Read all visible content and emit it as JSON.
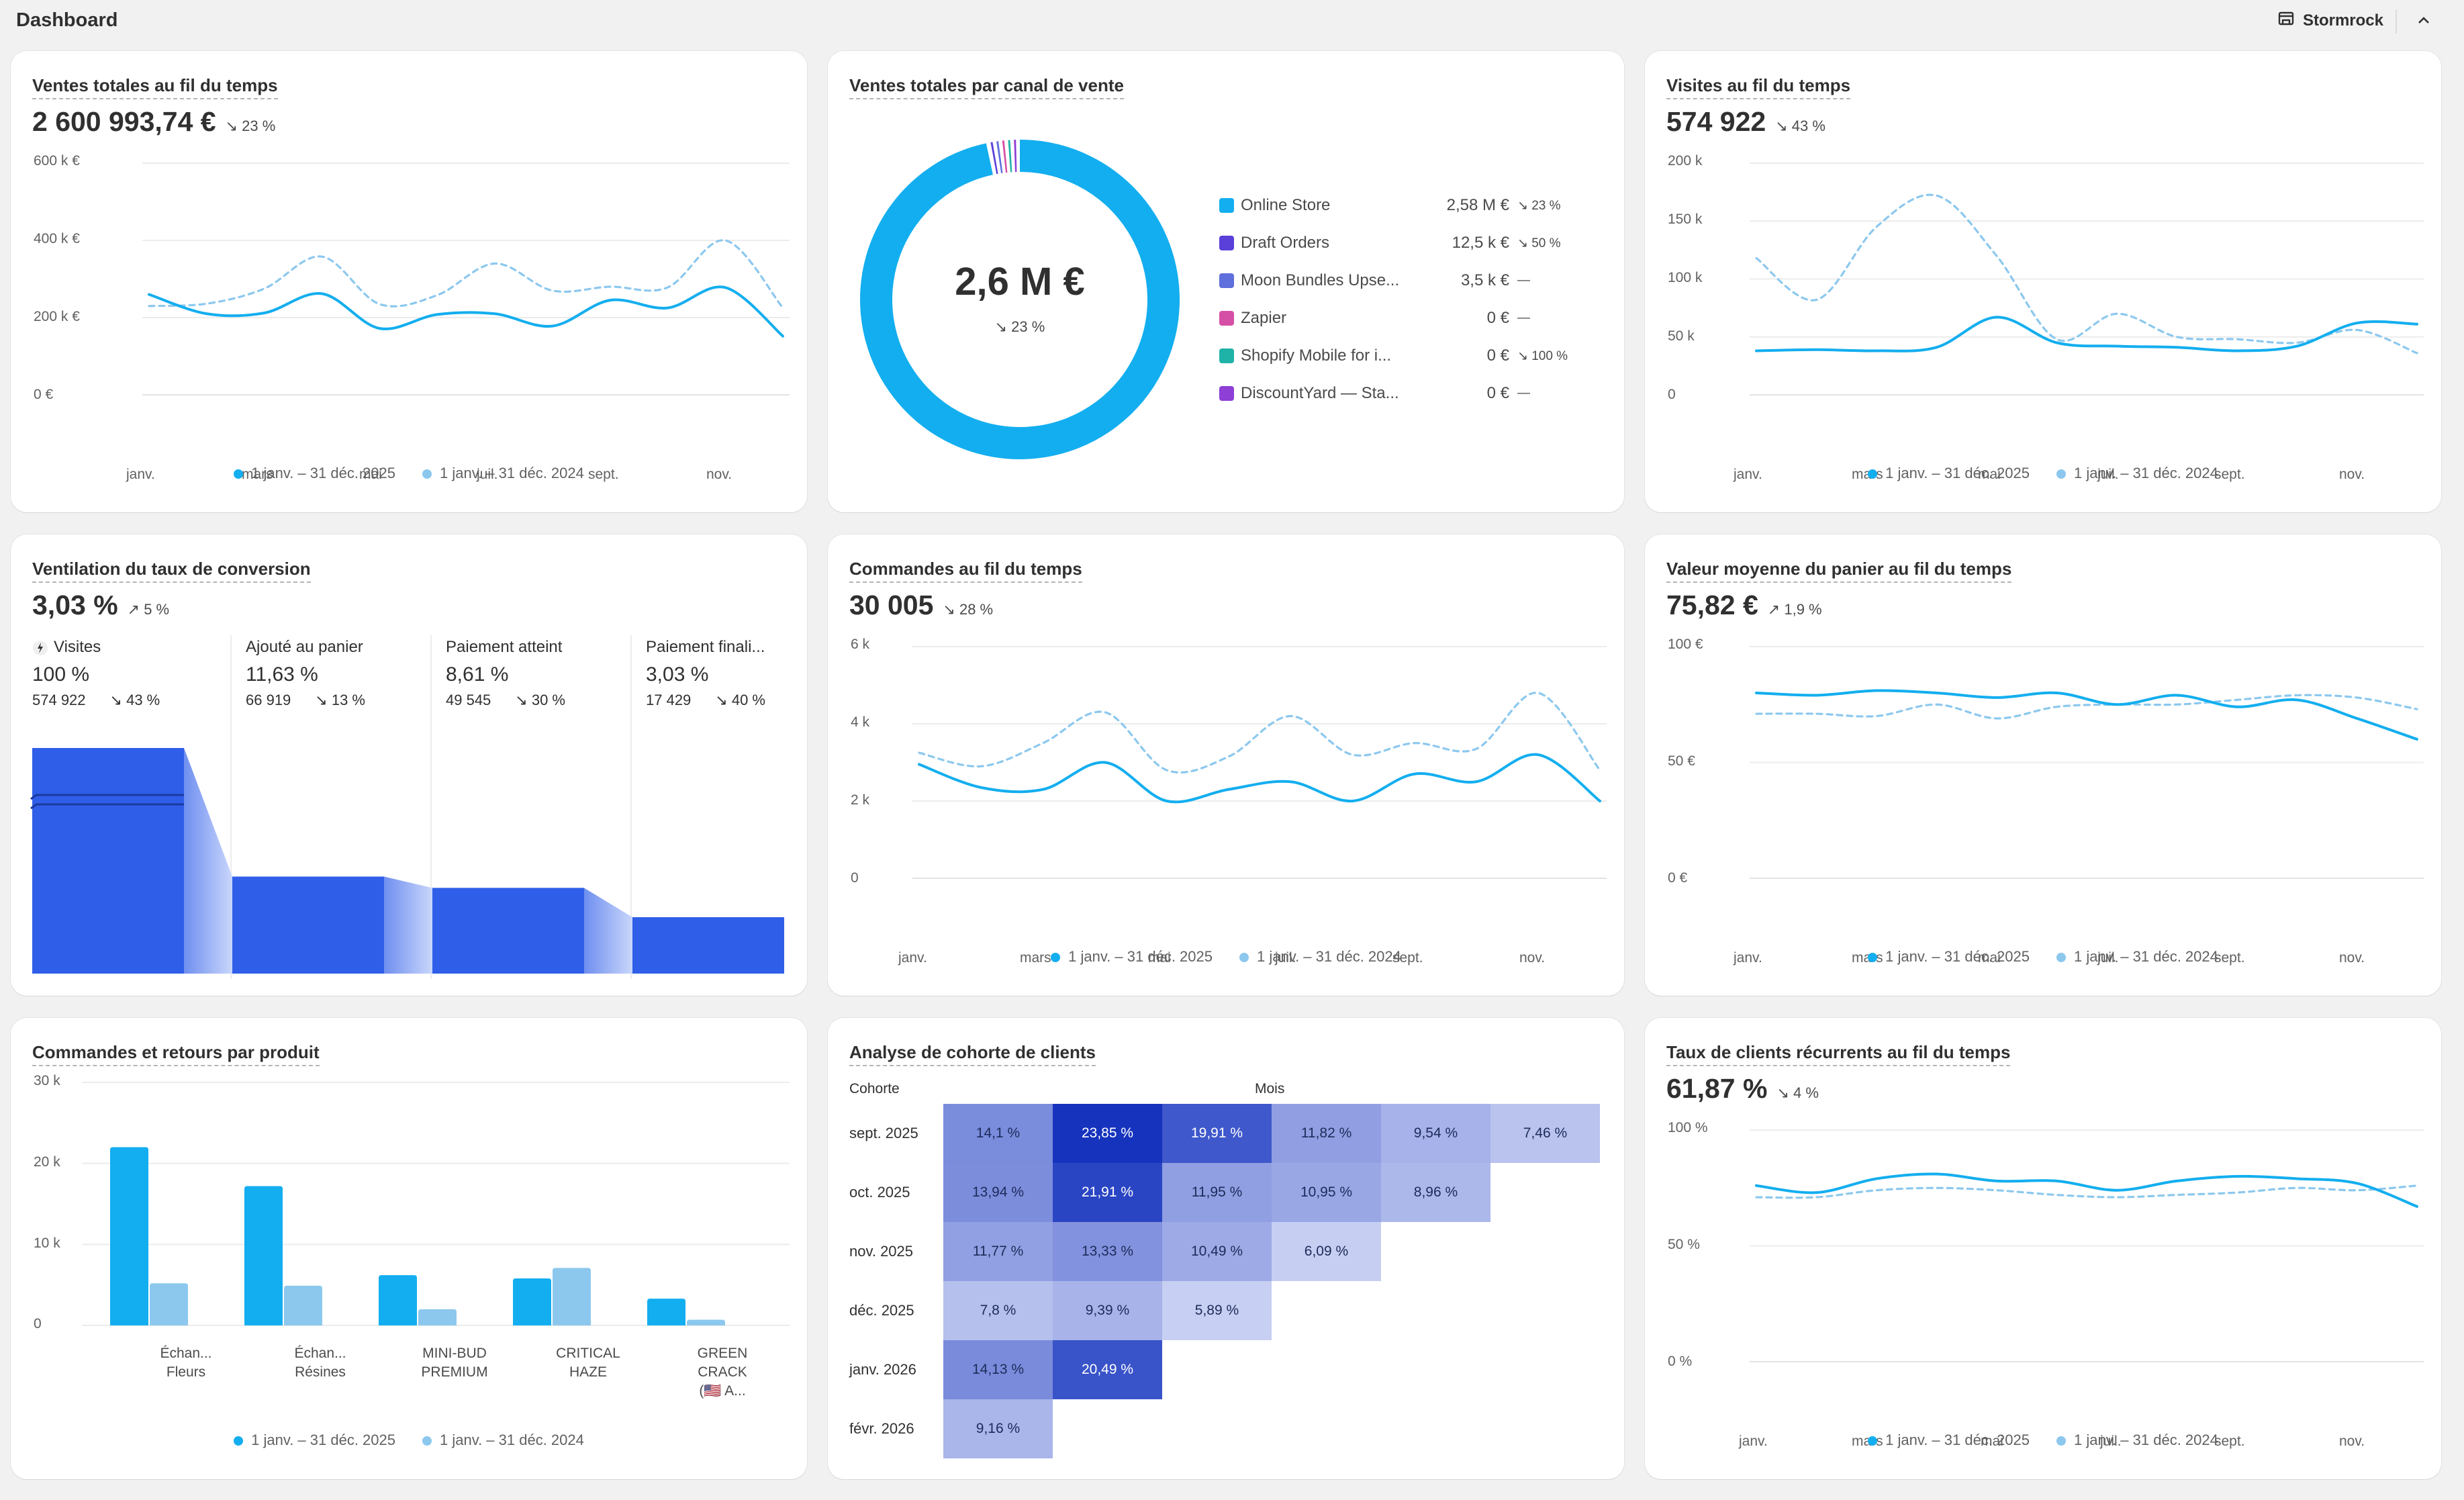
{
  "app": {
    "title": "Dashboard",
    "store": "Stormrock"
  },
  "legend": {
    "current": "1 janv. – 31 déc. 2025",
    "previous": "1 janv. – 31 déc. 2024"
  },
  "colors": {
    "current": "#13aeef",
    "previous": "#8cc8ee",
    "funnel_bar": "#2f5ee8"
  },
  "sales": {
    "title": "Ventes totales au fil du temps",
    "value": "2 600 993,74 €",
    "change": "↘ 23 %",
    "yticks": [
      "600 k €",
      "400 k €",
      "200 k €",
      "0 €"
    ],
    "xticks": [
      "janv.",
      "mars",
      "mai",
      "juil.",
      "sept.",
      "nov."
    ]
  },
  "channels": {
    "title": "Ventes totales par canal de vente",
    "center_value": "2,6 M €",
    "center_change": "↘ 23 %",
    "items": [
      {
        "name": "Online Store",
        "value": "2,58 M €",
        "change": "↘ 23 %",
        "color": "#13aeef"
      },
      {
        "name": "Draft Orders",
        "value": "12,5 k €",
        "change": "↘ 50 %",
        "color": "#5b3fd9"
      },
      {
        "name": "Moon Bundles Upse...",
        "value": "3,5 k €",
        "change": "—",
        "color": "#5f6fdc"
      },
      {
        "name": "Zapier",
        "value": "0 €",
        "change": "—",
        "color": "#d64fa6"
      },
      {
        "name": "Shopify Mobile for i...",
        "value": "0 €",
        "change": "↘ 100 %",
        "color": "#1fb3a8"
      },
      {
        "name": "DiscountYard — Sta...",
        "value": "0 €",
        "change": "—",
        "color": "#8e3fd6"
      }
    ]
  },
  "visits": {
    "title": "Visites au fil du temps",
    "value": "574 922",
    "change": "↘ 43 %",
    "yticks": [
      "200 k",
      "150 k",
      "100 k",
      "50 k",
      "0"
    ],
    "xticks": [
      "janv.",
      "mars",
      "mai",
      "juil.",
      "sept.",
      "nov."
    ]
  },
  "conversion": {
    "title": "Ventilation du taux de conversion",
    "value": "3,03 %",
    "change": "↗ 5 %",
    "steps": [
      {
        "label": "Visites",
        "pct": "100 %",
        "count": "574 922",
        "change": "↘ 43 %",
        "height": 1.0
      },
      {
        "label": "Ajouté au panier",
        "pct": "11,63 %",
        "count": "66 919",
        "change": "↘ 13 %",
        "height": 0.43
      },
      {
        "label": "Paiement atteint",
        "pct": "8,61 %",
        "count": "49 545",
        "change": "↘ 30 %",
        "height": 0.38
      },
      {
        "label": "Paiement finali...",
        "pct": "3,03 %",
        "count": "17 429",
        "change": "↘ 40 %",
        "height": 0.25
      }
    ]
  },
  "orders": {
    "title": "Commandes au fil du temps",
    "value": "30 005",
    "change": "↘ 28 %",
    "yticks": [
      "6 k",
      "4 k",
      "2 k",
      "0"
    ],
    "xticks": [
      "janv.",
      "mars",
      "mai",
      "juil.",
      "sept.",
      "nov."
    ]
  },
  "aov": {
    "title": "Valeur moyenne du panier au fil du temps",
    "value": "75,82 €",
    "change": "↗ 1,9 %",
    "yticks": [
      "100 €",
      "50 €",
      "0 €"
    ],
    "xticks": [
      "janv.",
      "mars",
      "mai",
      "juil.",
      "sept.",
      "nov."
    ]
  },
  "products": {
    "title": "Commandes et retours par produit",
    "yticks": [
      "30 k",
      "20 k",
      "10 k",
      "0"
    ],
    "labels": [
      [
        "Échan...",
        "Fleurs"
      ],
      [
        "Échan...",
        "Résines"
      ],
      [
        "MINI-BUD",
        "PREMIUM"
      ],
      [
        "CRITICAL",
        "HAZE"
      ],
      [
        "GREEN",
        "CRACK",
        "(🇺🇸 A..."
      ]
    ]
  },
  "chart_data": [
    {
      "type": "line",
      "title": "Ventes totales au fil du temps",
      "ylim": [
        0,
        600000
      ],
      "series": [
        {
          "name": "1 janv. – 31 déc. 2025",
          "values": [
            260000,
            210000,
            212000,
            262000,
            172000,
            208000,
            210000,
            178000,
            245000,
            225000,
            278000,
            152000
          ]
        },
        {
          "name": "1 janv. – 31 déc. 2024",
          "values": [
            230000,
            236000,
            275000,
            358000,
            235000,
            258000,
            340000,
            270000,
            280000,
            278000,
            400000,
            225000
          ]
        }
      ]
    },
    {
      "type": "line",
      "title": "Visites au fil du temps",
      "ylim": [
        0,
        200000
      ],
      "series": [
        {
          "name": "1 janv. – 31 déc. 2025",
          "values": [
            38000,
            39000,
            38000,
            41000,
            67000,
            45000,
            42000,
            41000,
            38000,
            42000,
            62000,
            61000
          ]
        },
        {
          "name": "1 janv. – 31 déc. 2024",
          "values": [
            118000,
            82000,
            145000,
            172000,
            120000,
            48000,
            70000,
            50000,
            48000,
            45000,
            56000,
            36000
          ]
        }
      ]
    },
    {
      "type": "line",
      "title": "Commandes au fil du temps",
      "ylim": [
        0,
        6000
      ],
      "series": [
        {
          "name": "1 janv. – 31 déc. 2025",
          "values": [
            2950,
            2350,
            2300,
            3000,
            2000,
            2300,
            2500,
            2000,
            2700,
            2500,
            3200,
            2000
          ]
        },
        {
          "name": "1 janv. – 31 déc. 2024",
          "values": [
            3250,
            2900,
            3500,
            4300,
            2800,
            3150,
            4200,
            3200,
            3500,
            3350,
            4800,
            2800
          ]
        }
      ]
    },
    {
      "type": "line",
      "title": "Valeur moyenne du panier au fil du temps",
      "ylim": [
        0,
        100
      ],
      "series": [
        {
          "name": "1 janv. – 31 déc. 2025",
          "values": [
            80,
            79,
            81,
            80,
            78,
            80,
            75,
            79,
            74,
            77,
            69,
            60
          ]
        },
        {
          "name": "1 janv. – 31 déc. 2024",
          "values": [
            71,
            71,
            70,
            75,
            69,
            74,
            75,
            75,
            77,
            79,
            78,
            73
          ]
        }
      ]
    },
    {
      "type": "bar",
      "title": "Commandes et retours par produit",
      "ylim": [
        0,
        30000
      ],
      "categories": [
        "Échan... Fleurs",
        "Échan... Résines",
        "MINI-BUD PREMIUM",
        "CRITICAL HAZE",
        "GREEN CRACK (🇺🇸 A..."
      ],
      "series": [
        {
          "name": "1 janv. – 31 déc. 2025",
          "values": [
            22000,
            17200,
            6200,
            5800,
            3300
          ]
        },
        {
          "name": "1 janv. – 31 déc. 2024",
          "values": [
            5200,
            4900,
            2000,
            7100,
            700
          ]
        }
      ]
    },
    {
      "type": "line",
      "title": "Taux de clients récurrents au fil du temps",
      "ylim": [
        0,
        100
      ],
      "series": [
        {
          "name": "1 janv. – 31 déc. 2025",
          "values": [
            76,
            73,
            79,
            81,
            78,
            78,
            74,
            78,
            80,
            79,
            77,
            67
          ]
        },
        {
          "name": "1 janv. – 31 déc. 2024",
          "values": [
            71,
            71,
            74,
            75,
            74,
            72,
            71,
            72,
            73,
            75,
            74,
            76
          ]
        }
      ]
    },
    {
      "type": "pie",
      "title": "Ventes totales par canal de vente",
      "categories": [
        "Online Store",
        "Draft Orders",
        "Moon Bundles Upse...",
        "Zapier",
        "Shopify Mobile for i...",
        "DiscountYard — Sta..."
      ],
      "values": [
        2580000,
        12500,
        3500,
        0,
        0,
        0
      ]
    }
  ],
  "cohort": {
    "title": "Analyse de cohorte de clients",
    "cohort_header": "Cohorte",
    "months_header": "Mois",
    "rows": [
      {
        "label": "sept. 2025",
        "cells": [
          "14,1 %",
          "23,85 %",
          "19,91 %",
          "11,82 %",
          "9,54 %",
          "7,46 %"
        ]
      },
      {
        "label": "oct. 2025",
        "cells": [
          "13,94 %",
          "21,91 %",
          "11,95 %",
          "10,95 %",
          "8,96 %"
        ]
      },
      {
        "label": "nov. 2025",
        "cells": [
          "11,77 %",
          "13,33 %",
          "10,49 %",
          "6,09 %"
        ]
      },
      {
        "label": "déc. 2025",
        "cells": [
          "7,8 %",
          "9,39 %",
          "5,89 %"
        ]
      },
      {
        "label": "janv. 2026",
        "cells": [
          "14,13 %",
          "20,49 %"
        ]
      },
      {
        "label": "févr. 2026",
        "cells": [
          "9,16 %"
        ]
      }
    ]
  },
  "returning": {
    "title": "Taux de clients récurrents au fil du temps",
    "value": "61,87 %",
    "change": "↘ 4 %",
    "yticks": [
      "100 %",
      "50 %",
      "0 %"
    ],
    "xticks": [
      "janv.",
      "mars",
      "mai",
      "juil.",
      "sept.",
      "nov."
    ]
  }
}
